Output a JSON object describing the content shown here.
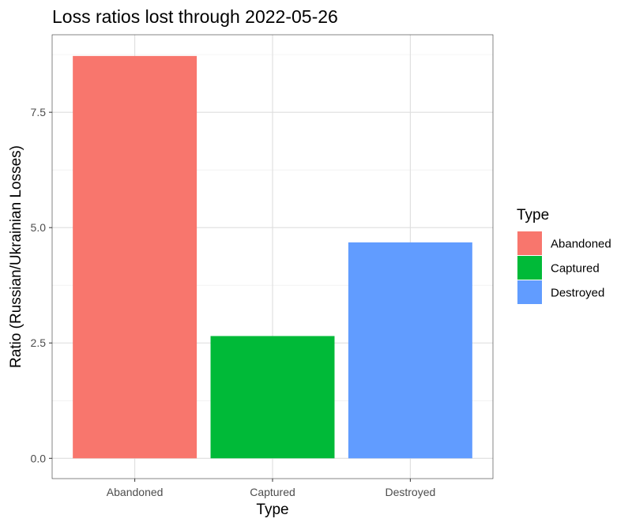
{
  "chart_data": {
    "type": "bar",
    "title": "Loss ratios lost through 2022-05-26",
    "xlabel": "Type",
    "ylabel": "Ratio (Russian/Ukrainian Losses)",
    "categories": [
      "Abandoned",
      "Captured",
      "Destroyed"
    ],
    "values": [
      8.72,
      2.65,
      4.68
    ],
    "ylim": [
      -0.44,
      9.18
    ],
    "yticks": [
      0.0,
      2.5,
      5.0,
      7.5
    ],
    "ytick_labels": [
      "0.0",
      "2.5",
      "5.0",
      "7.5"
    ],
    "grid": true,
    "legend": {
      "title": "Type",
      "position": "right",
      "entries": [
        "Abandoned",
        "Captured",
        "Destroyed"
      ]
    },
    "colors": [
      "#F8766D",
      "#00BA38",
      "#619CFF"
    ]
  }
}
